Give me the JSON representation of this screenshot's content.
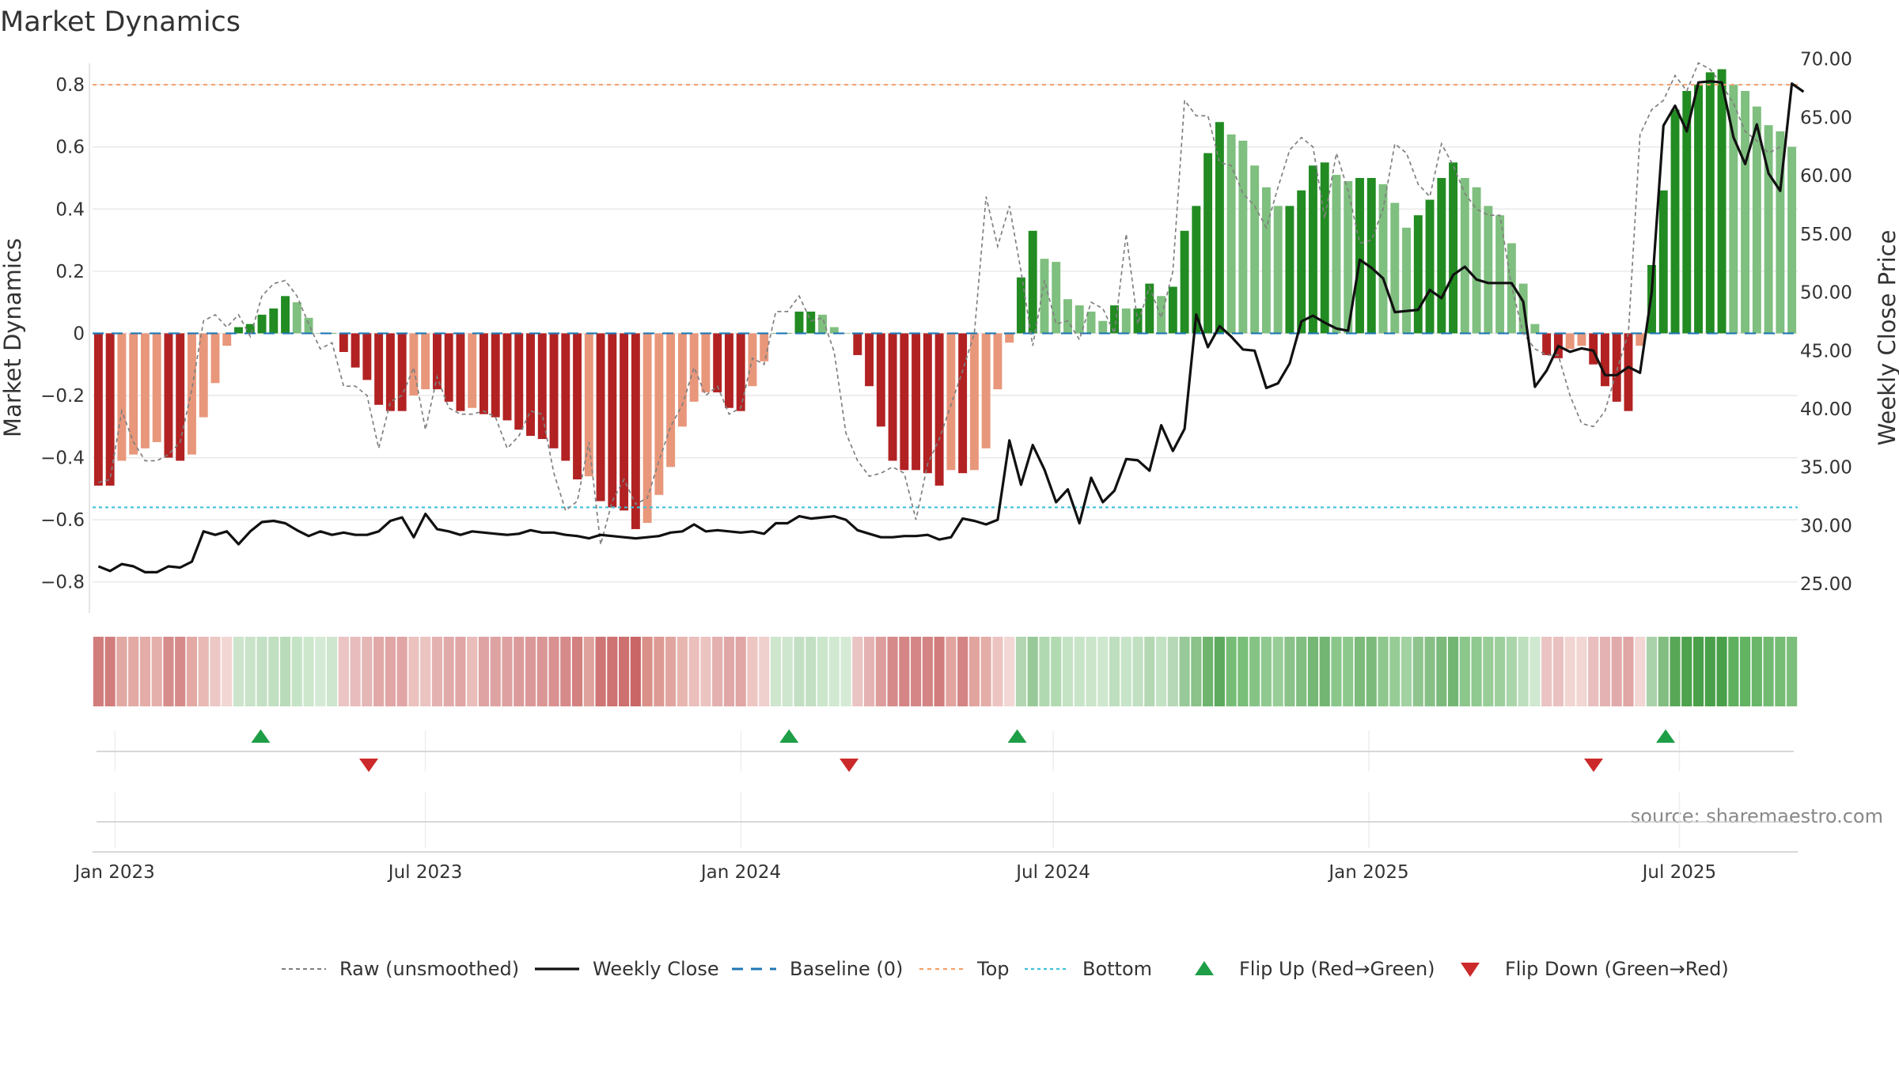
{
  "chart_data": {
    "type": "bar",
    "title": "Market Dynamics",
    "ylabel_left": "Market Dynamics",
    "ylabel_right": "Weekly Close Price",
    "ylim_left": [
      -0.9,
      0.92
    ],
    "ylim_right": [
      22.5,
      71.0
    ],
    "yticks_left": [
      "0.8",
      "0.6",
      "0.4",
      "0.2",
      "0",
      "−0.2",
      "−0.4",
      "−0.6",
      "−0.8"
    ],
    "yticks_left_values": [
      0.8,
      0.6,
      0.4,
      0.2,
      0,
      -0.2,
      -0.4,
      -0.6,
      -0.8
    ],
    "yticks_right": [
      "70.00",
      "65.00",
      "60.00",
      "55.00",
      "50.00",
      "45.00",
      "40.00",
      "35.00",
      "30.00",
      "25.00"
    ],
    "yticks_right_values": [
      70,
      65,
      60,
      55,
      50,
      45,
      40,
      35,
      30,
      25
    ],
    "x_start": "2022-12-19",
    "x_end": "2025-09-08",
    "xticks": [
      {
        "label": "Jan 2023",
        "date": "2023-01-01"
      },
      {
        "label": "Jul 2023",
        "date": "2023-07-01"
      },
      {
        "label": "Jan 2024",
        "date": "2024-01-01"
      },
      {
        "label": "Jul 2024",
        "date": "2024-07-01"
      },
      {
        "label": "Jan 2025",
        "date": "2025-01-01"
      },
      {
        "label": "Jul 2025",
        "date": "2025-07-01"
      }
    ],
    "top_level": 0.8,
    "bottom_level": -0.56,
    "baseline": 0,
    "grid": true,
    "legend_position": "bottom",
    "smoothed_values": [
      -0.49,
      -0.49,
      -0.41,
      -0.39,
      -0.37,
      -0.35,
      -0.4,
      -0.41,
      -0.39,
      -0.27,
      -0.16,
      -0.04,
      0.02,
      0.03,
      0.06,
      0.08,
      0.12,
      0.1,
      0.05,
      0.0,
      0.0,
      -0.06,
      -0.11,
      -0.15,
      -0.23,
      -0.25,
      -0.25,
      -0.2,
      -0.18,
      -0.18,
      -0.22,
      -0.25,
      -0.24,
      -0.26,
      -0.27,
      -0.28,
      -0.31,
      -0.33,
      -0.34,
      -0.37,
      -0.41,
      -0.47,
      -0.46,
      -0.54,
      -0.56,
      -0.57,
      -0.63,
      -0.61,
      -0.52,
      -0.43,
      -0.3,
      -0.22,
      -0.19,
      -0.19,
      -0.24,
      -0.25,
      -0.17,
      -0.09,
      0.0,
      0.0,
      0.07,
      0.07,
      0.06,
      0.02,
      0.0,
      -0.07,
      -0.17,
      -0.3,
      -0.41,
      -0.44,
      -0.44,
      -0.45,
      -0.49,
      -0.44,
      -0.45,
      -0.44,
      -0.37,
      -0.18,
      -0.03,
      0.18,
      0.33,
      0.24,
      0.23,
      0.11,
      0.09,
      0.07,
      0.04,
      0.09,
      0.08,
      0.08,
      0.16,
      0.12,
      0.15,
      0.33,
      0.41,
      0.58,
      0.68,
      0.64,
      0.62,
      0.54,
      0.47,
      0.41,
      0.41,
      0.46,
      0.54,
      0.55,
      0.51,
      0.49,
      0.5,
      0.5,
      0.48,
      0.42,
      0.34,
      0.38,
      0.43,
      0.5,
      0.55,
      0.5,
      0.47,
      0.41,
      0.38,
      0.29,
      0.16,
      0.03,
      -0.07,
      -0.08,
      -0.05,
      -0.04,
      -0.1,
      -0.17,
      -0.22,
      -0.25,
      -0.04,
      0.22,
      0.46,
      0.72,
      0.78,
      0.8,
      0.84,
      0.85,
      0.8,
      0.78,
      0.73,
      0.67,
      0.65,
      0.6
    ],
    "colors": {
      "strong_red": "#b22222",
      "weak_red": "#e8977b",
      "strong_green": "#228b22",
      "weak_green": "#7fbf7f",
      "raw_line": "#808080",
      "close_line": "#111111",
      "baseline": "#1f77b4",
      "top": "#f4a06b",
      "bottom": "#3fc1d9",
      "flip_up": "#1e9e46",
      "flip_down": "#cc2a2a"
    },
    "raw_values": [
      -0.48,
      -0.47,
      -0.25,
      -0.35,
      -0.41,
      -0.41,
      -0.39,
      -0.35,
      -0.18,
      0.04,
      0.06,
      0.02,
      0.06,
      -0.01,
      0.12,
      0.16,
      0.17,
      0.12,
      0.03,
      -0.05,
      -0.03,
      -0.17,
      -0.17,
      -0.2,
      -0.37,
      -0.22,
      -0.2,
      -0.11,
      -0.31,
      -0.14,
      -0.24,
      -0.26,
      -0.26,
      -0.25,
      -0.27,
      -0.37,
      -0.33,
      -0.25,
      -0.26,
      -0.45,
      -0.57,
      -0.54,
      -0.35,
      -0.68,
      -0.54,
      -0.47,
      -0.55,
      -0.53,
      -0.41,
      -0.3,
      -0.23,
      -0.11,
      -0.2,
      -0.17,
      -0.26,
      -0.24,
      -0.08,
      -0.1,
      0.07,
      0.07,
      0.12,
      0.04,
      0.05,
      -0.06,
      -0.32,
      -0.41,
      -0.46,
      -0.45,
      -0.43,
      -0.45,
      -0.6,
      -0.42,
      -0.34,
      -0.23,
      -0.12,
      0.0,
      0.44,
      0.28,
      0.41,
      0.2,
      -0.04,
      0.17,
      0.03,
      0.04,
      -0.02,
      0.1,
      0.08,
      0.0,
      0.32,
      0.03,
      0.15,
      0.05,
      0.2,
      0.75,
      0.7,
      0.7,
      0.55,
      0.54,
      0.45,
      0.41,
      0.34,
      0.47,
      0.59,
      0.63,
      0.6,
      0.37,
      0.58,
      0.46,
      0.29,
      0.3,
      0.4,
      0.61,
      0.58,
      0.48,
      0.44,
      0.61,
      0.54,
      0.45,
      0.4,
      0.38,
      0.38,
      0.15,
      0.0,
      -0.05,
      -0.07,
      -0.07,
      -0.2,
      -0.29,
      -0.3,
      -0.25,
      -0.12,
      0.0,
      0.64,
      0.72,
      0.75,
      0.83,
      0.78,
      0.87,
      0.85,
      0.8,
      0.74,
      0.65,
      0.62,
      0.58,
      0.6
    ],
    "weekly_close": [
      26.5,
      26.1,
      26.7,
      26.5,
      26.0,
      26.0,
      26.5,
      26.4,
      26.9,
      29.5,
      29.2,
      29.5,
      28.4,
      29.5,
      30.3,
      30.4,
      30.2,
      29.6,
      29.1,
      29.5,
      29.2,
      29.4,
      29.2,
      29.2,
      29.5,
      30.4,
      30.7,
      29.0,
      31.0,
      29.7,
      29.5,
      29.2,
      29.5,
      29.4,
      29.3,
      29.2,
      29.3,
      29.6,
      29.4,
      29.4,
      29.2,
      29.1,
      28.9,
      29.2,
      29.1,
      29.0,
      28.9,
      29.0,
      29.1,
      29.4,
      29.5,
      30.1,
      29.5,
      29.6,
      29.5,
      29.4,
      29.5,
      29.3,
      30.2,
      30.2,
      30.8,
      30.6,
      30.7,
      30.8,
      30.5,
      29.6,
      29.3,
      29.0,
      29.0,
      29.1,
      29.1,
      29.2,
      28.8,
      29.0,
      30.6,
      30.4,
      30.1,
      30.5,
      37.3,
      33.5,
      36.9,
      34.8,
      32.0,
      33.1,
      30.2,
      34.1,
      32.0,
      33.0,
      35.7,
      35.6,
      34.7,
      38.6,
      36.4,
      38.3,
      48.1,
      45.3,
      47.1,
      46.2,
      45.1,
      45.0,
      41.8,
      42.2,
      43.9,
      47.5,
      48.0,
      47.4,
      46.9,
      46.7,
      52.8,
      52.1,
      51.2,
      48.3,
      48.4,
      48.5,
      50.2,
      49.5,
      51.5,
      52.2,
      51.1,
      50.8,
      50.8,
      50.8,
      49.2,
      41.9,
      43.3,
      45.4,
      44.9,
      45.2,
      45.0,
      42.9,
      42.9,
      43.6,
      43.1,
      50.0,
      64.3,
      66.0,
      63.8,
      68.0,
      68.1,
      68.0,
      63.3,
      61.0,
      64.4,
      60.2,
      58.7,
      67.9,
      67.2
    ],
    "flip_up_dates": [
      "2023-03-27",
      "2024-01-29",
      "2024-06-10",
      "2025-06-23"
    ],
    "flip_down_dates": [
      "2023-05-29",
      "2024-03-04",
      "2025-05-12"
    ],
    "legend": [
      {
        "key": "raw",
        "label": "Raw (unsmoothed)"
      },
      {
        "key": "close",
        "label": "Weekly Close"
      },
      {
        "key": "baseline",
        "label": "Baseline (0)"
      },
      {
        "key": "top",
        "label": "Top"
      },
      {
        "key": "bottom",
        "label": "Bottom"
      },
      {
        "key": "flipup",
        "label": "Flip Up (Red→Green)"
      },
      {
        "key": "flipdown",
        "label": "Flip Down (Green→Red)"
      }
    ],
    "source": "source: sharemaestro.com"
  }
}
